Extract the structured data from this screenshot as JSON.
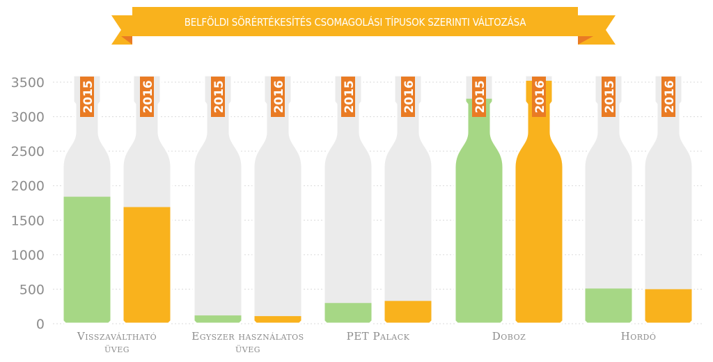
{
  "chart_data": {
    "type": "bar",
    "title": "BELFÖLDI SÖRÉRTÉKESÍTÉS CSOMAGOLÁSI TÍPUSOK SZERINTI VÁLTOZÁSA",
    "xlabel": "",
    "ylabel": "",
    "ylim": [
      0,
      3500
    ],
    "yticks": [
      0,
      500,
      1000,
      1500,
      2000,
      2500,
      3000,
      3500
    ],
    "grid": true,
    "categories": [
      [
        "Visszaváltható",
        "üveg"
      ],
      [
        "Egyszer használatos",
        "üveg"
      ],
      [
        "PET Palack"
      ],
      [
        "Doboz"
      ],
      [
        "Hordó"
      ]
    ],
    "series": [
      {
        "name": "2015",
        "values": [
          1840,
          120,
          300,
          3260,
          510
        ]
      },
      {
        "name": "2016",
        "values": [
          1690,
          110,
          330,
          3520,
          500
        ]
      }
    ]
  },
  "colors": {
    "series_2015": "#a6d785",
    "series_2016": "#f9b21d",
    "bottle_bg": "#ebebeb",
    "year_tag": "#e97b24",
    "banner": "#f9b21d",
    "banner_fold": "#e97b24",
    "axis_text": "#8c8c8c",
    "grid": "#d9d9d9"
  }
}
